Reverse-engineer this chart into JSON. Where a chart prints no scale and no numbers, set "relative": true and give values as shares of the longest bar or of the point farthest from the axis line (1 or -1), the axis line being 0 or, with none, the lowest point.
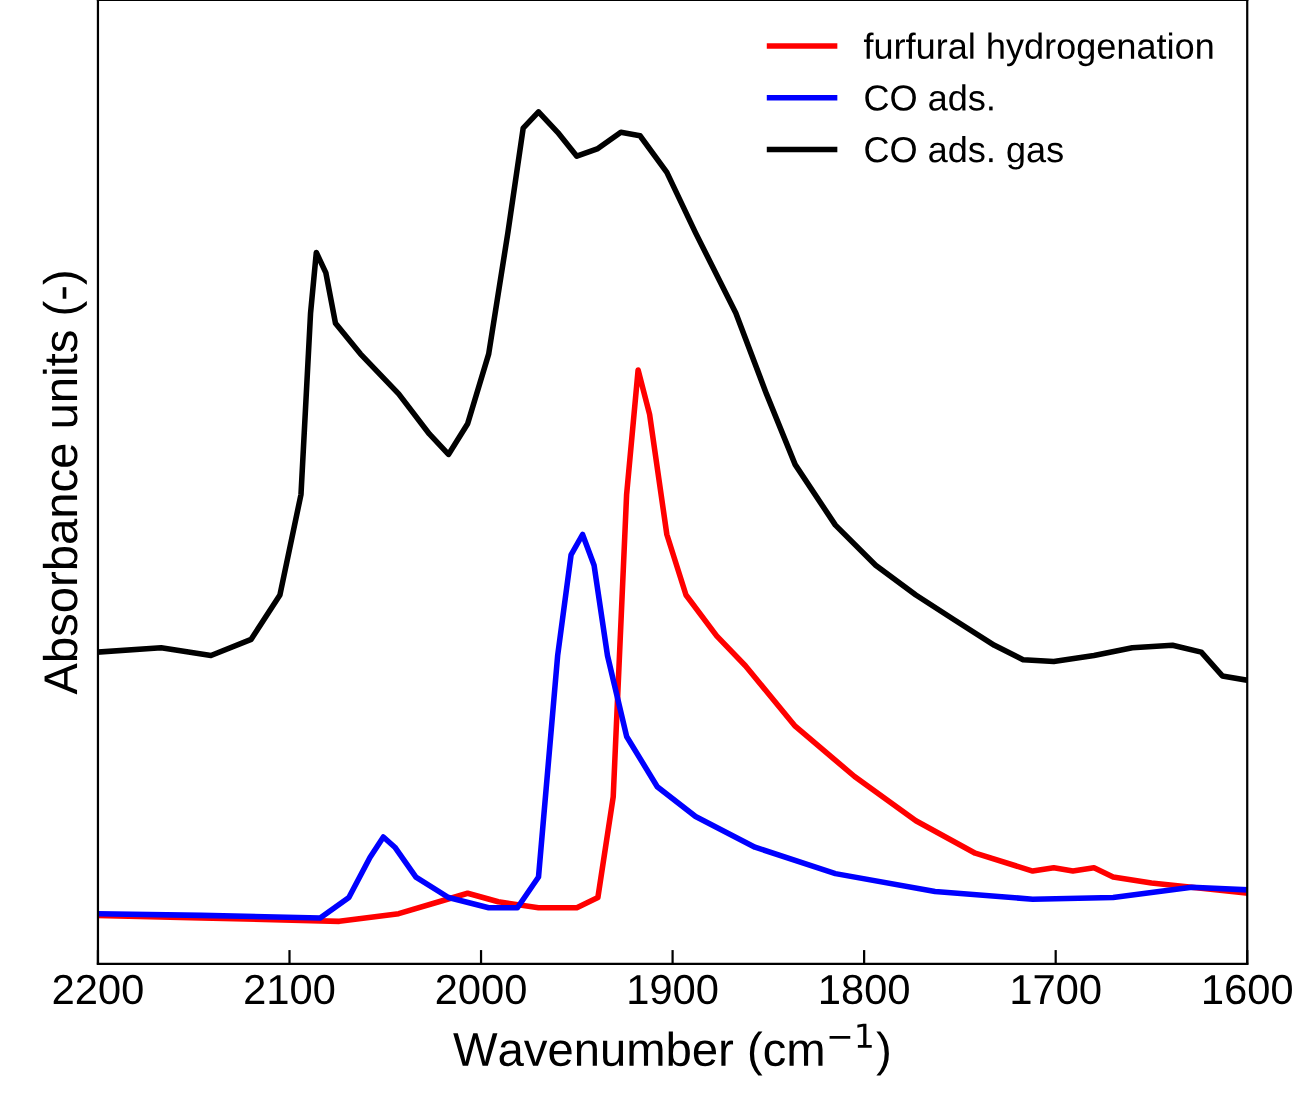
{
  "chart_data": {
    "type": "line",
    "relative": true,
    "xlabel": "Wavenumber (cm$^{−1}$)",
    "ylabel": "Absorbance units (-)",
    "xlim": [
      2200,
      1600
    ],
    "xticks": [
      2200,
      2100,
      2000,
      1900,
      1800,
      1700,
      1600
    ],
    "tick_labels": "x",
    "legend": "top right",
    "line_style": "solid",
    "marker": "none",
    "grid": false,
    "series": [
      {
        "name": "furfural hydrogenation",
        "color": "#ff0000",
        "x": [
          2200,
          2146,
          2074,
          2043,
          2022,
          2007,
          1991,
          1970,
          1950,
          1939,
          1931,
          1924,
          1918,
          1912,
          1903,
          1893,
          1877,
          1862,
          1836,
          1805,
          1773,
          1742,
          1712,
          1701,
          1691,
          1680,
          1670,
          1650,
          1629,
          1600
        ],
        "values": [
          0.057,
          0.054,
          0.05,
          0.059,
          0.073,
          0.083,
          0.073,
          0.066,
          0.066,
          0.078,
          0.196,
          0.551,
          0.697,
          0.645,
          0.504,
          0.433,
          0.385,
          0.35,
          0.279,
          0.22,
          0.168,
          0.13,
          0.109,
          0.113,
          0.109,
          0.113,
          0.102,
          0.095,
          0.09,
          0.083
        ]
      },
      {
        "name": "CO ads.",
        "color": "#0000ff",
        "x": [
          2200,
          2146,
          2084,
          2069,
          2058,
          2051,
          2045,
          2034,
          2017,
          1996,
          1981,
          1970,
          1960,
          1953,
          1947,
          1941,
          1934,
          1924,
          1908,
          1888,
          1857,
          1815,
          1763,
          1712,
          1670,
          1629,
          1600
        ],
        "values": [
          0.059,
          0.057,
          0.054,
          0.078,
          0.125,
          0.149,
          0.137,
          0.102,
          0.078,
          0.066,
          0.066,
          0.102,
          0.362,
          0.48,
          0.504,
          0.468,
          0.362,
          0.267,
          0.208,
          0.173,
          0.137,
          0.106,
          0.085,
          0.076,
          0.078,
          0.09,
          0.087
        ]
      },
      {
        "name": "CO ads. gas",
        "color": "#000000",
        "x": [
          2200,
          2167,
          2141,
          2120,
          2105,
          2094,
          2089,
          2086,
          2081,
          2076,
          2063,
          2043,
          2027,
          2017,
          2007,
          1996,
          1986,
          1978,
          1970,
          1960,
          1950,
          1939,
          1927,
          1917,
          1903,
          1888,
          1867,
          1851,
          1836,
          1815,
          1794,
          1773,
          1753,
          1732,
          1717,
          1701,
          1680,
          1660,
          1639,
          1624,
          1613,
          1600
        ],
        "values": [
          0.366,
          0.371,
          0.362,
          0.381,
          0.433,
          0.551,
          0.764,
          0.835,
          0.811,
          0.752,
          0.716,
          0.669,
          0.622,
          0.598,
          0.634,
          0.716,
          0.858,
          0.981,
          1,
          0.976,
          0.948,
          0.957,
          0.976,
          0.972,
          0.929,
          0.858,
          0.764,
          0.669,
          0.586,
          0.515,
          0.468,
          0.433,
          0.404,
          0.374,
          0.357,
          0.355,
          0.362,
          0.371,
          0.374,
          0.366,
          0.338,
          0.333
        ]
      }
    ]
  }
}
